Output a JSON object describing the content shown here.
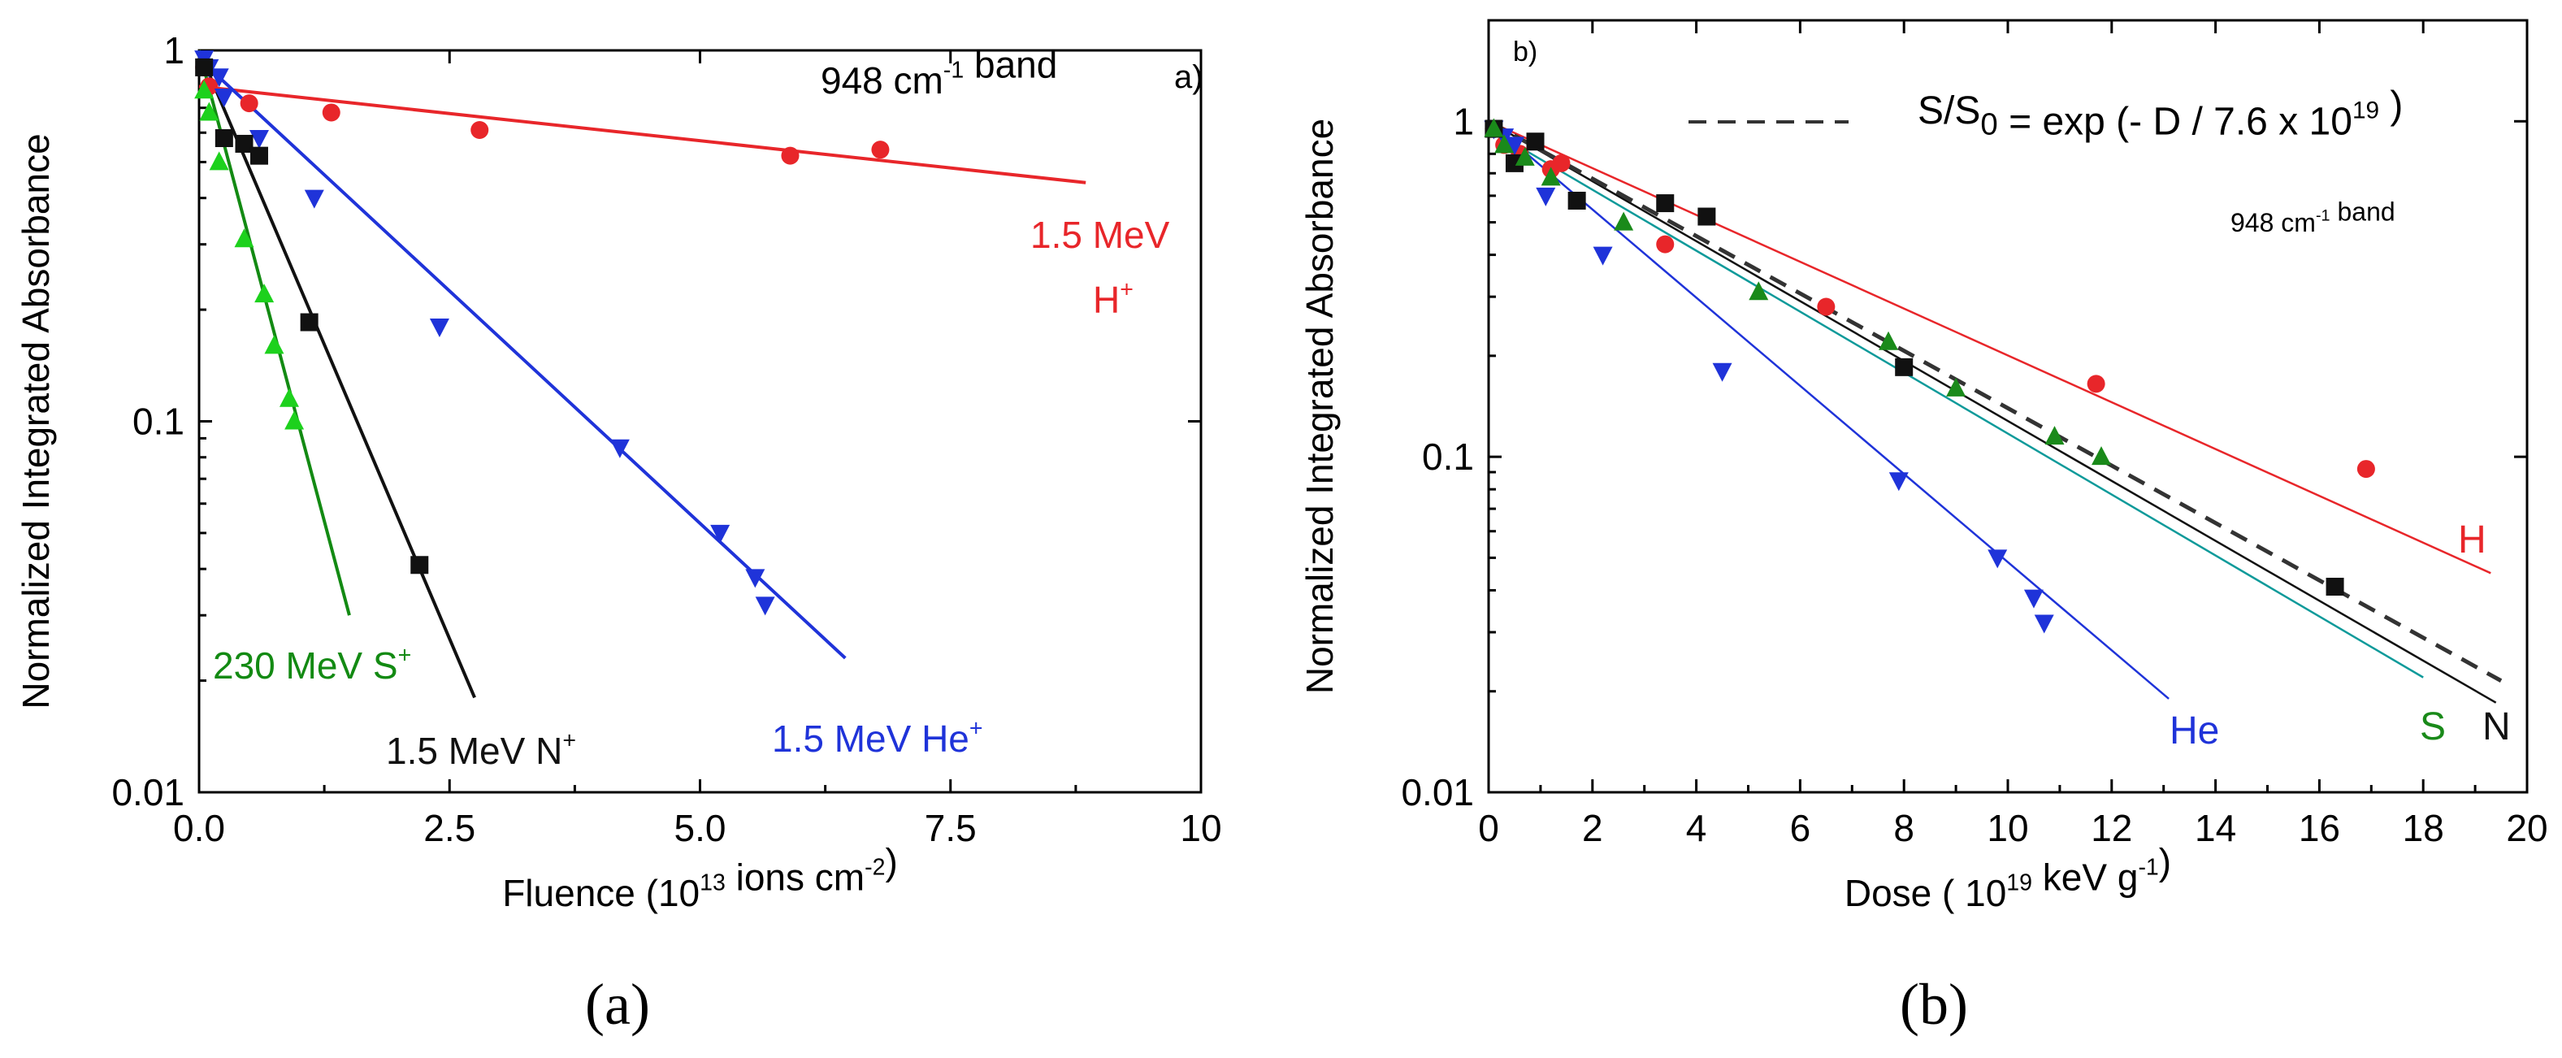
{
  "chart_data": [
    {
      "type": "scatter",
      "panel": "a",
      "panel_tag": "a)",
      "caption": "(a)",
      "band_label": "948 cm",
      "band_sup": "-1",
      "band_suffix": " band",
      "xlabel": "Fluence  (10",
      "xlabel_sup": "13",
      "xlabel_mid": " ions cm",
      "xlabel_sup2": "-2",
      "xlabel_end": ")",
      "ylabel": "Normalized  Integrated  Absorbance",
      "xlim": [
        0,
        10
      ],
      "ylim": [
        0.01,
        1
      ],
      "yscale": "log",
      "xticks": [
        0,
        2.5,
        5,
        7.5,
        10
      ],
      "xtick_labels": [
        "0.0",
        "2.5",
        "5.0",
        "7.5",
        "10"
      ],
      "yticks": [
        0.01,
        0.1,
        1
      ],
      "ytick_labels": [
        "0.01",
        "0.1",
        "1"
      ],
      "series": [
        {
          "name": "H+",
          "label_lines": [
            "1.5 MeV",
            "H"
          ],
          "label_sup": "+",
          "color": "#e8262a",
          "marker": "circle",
          "x": [
            0.05,
            0.1,
            0.5,
            1.32,
            2.8,
            5.9,
            6.8
          ],
          "y": [
            0.9,
            0.8,
            0.72,
            0.68,
            0.61,
            0.52,
            0.54
          ],
          "fit": {
            "x": [
              0,
              8.85
            ],
            "y": [
              0.8,
              0.44
            ]
          }
        },
        {
          "name": "He+",
          "label": "1.5 MeV He",
          "label_sup": "+",
          "color": "#1f33d9",
          "marker": "triangle-down",
          "x": [
            0.05,
            0.1,
            0.2,
            0.25,
            0.6,
            1.15,
            2.4,
            4.2,
            5.2,
            5.55,
            5.65
          ],
          "y": [
            0.95,
            0.9,
            0.85,
            0.75,
            0.58,
            0.4,
            0.18,
            0.085,
            0.05,
            0.038,
            0.032
          ],
          "fit": {
            "x": [
              0,
              6.45
            ],
            "y": [
              0.95,
              0.023
            ]
          }
        },
        {
          "name": "N+",
          "label": "1.5 MeV N",
          "label_sup": "+",
          "color": "#111111",
          "marker": "square",
          "x": [
            0.05,
            0.25,
            0.45,
            0.6,
            1.1,
            2.2
          ],
          "y": [
            0.9,
            0.58,
            0.56,
            0.52,
            0.185,
            0.041
          ],
          "fit": {
            "x": [
              0,
              2.75
            ],
            "y": [
              1.0,
              0.018
            ]
          }
        },
        {
          "name": "S+",
          "label": "230 MeV S",
          "label_sup": "+",
          "color": "#1dd11d",
          "label_color": "#138a13",
          "marker": "triangle-up",
          "x": [
            0.05,
            0.1,
            0.2,
            0.45,
            0.65,
            0.75,
            0.9,
            0.95
          ],
          "y": [
            0.78,
            0.68,
            0.5,
            0.31,
            0.22,
            0.16,
            0.115,
            0.1
          ],
          "fit": {
            "x": [
              0,
              1.5
            ],
            "y": [
              1.0,
              0.03
            ]
          },
          "fit_color": "#138a13"
        }
      ]
    },
    {
      "type": "scatter",
      "panel": "b",
      "panel_tag": "b)",
      "caption": "(b)",
      "band_label": "948 cm",
      "band_sup": "-1",
      "band_suffix": " band",
      "equation": {
        "prefix": "S/S",
        "sub": "0",
        "mid": " = exp (- D / 7.6 x 10",
        "sup": "19",
        "end": " )"
      },
      "xlabel": "Dose  ( 10",
      "xlabel_sup": "19",
      "xlabel_mid": " keV g",
      "xlabel_sup2": "-1",
      "xlabel_end": ")",
      "ylabel": "Normalized  Integrated  Absorbance",
      "xlim": [
        0,
        20
      ],
      "ylim": [
        0.01,
        2
      ],
      "yscale": "log",
      "xticks": [
        0,
        2,
        4,
        6,
        8,
        10,
        12,
        14,
        16,
        18,
        20
      ],
      "xtick_labels": [
        "0",
        "2",
        "4",
        "6",
        "8",
        "10",
        "12",
        "14",
        "16",
        "18",
        "20"
      ],
      "yticks": [
        0.01,
        0.1,
        1
      ],
      "ytick_labels": [
        "0.01",
        "0.1",
        "1"
      ],
      "series": [
        {
          "name": "H",
          "label": "H",
          "color": "#e8262a",
          "line_color": "#e8262a",
          "marker": "circle",
          "x": [
            0.1,
            0.3,
            0.6,
            1.2,
            1.4,
            3.4,
            6.5,
            11.7,
            16.9
          ],
          "y": [
            0.95,
            0.85,
            0.8,
            0.72,
            0.75,
            0.43,
            0.28,
            0.165,
            0.092
          ],
          "fit": {
            "x": [
              0,
              19.3
            ],
            "y": [
              1.0,
              0.045
            ]
          }
        },
        {
          "name": "He",
          "label": "He",
          "color": "#1f33d9",
          "line_color": "#1f33d9",
          "marker": "triangle-down",
          "x": [
            0.1,
            0.3,
            0.5,
            1.1,
            2.2,
            4.5,
            7.9,
            9.8,
            10.5,
            10.7
          ],
          "y": [
            0.95,
            0.9,
            0.85,
            0.6,
            0.4,
            0.18,
            0.085,
            0.05,
            0.038,
            0.032
          ],
          "fit": {
            "x": [
              0,
              13.1
            ],
            "y": [
              1.0,
              0.019
            ]
          }
        },
        {
          "name": "N",
          "label": "N",
          "color": "#111111",
          "line_color": "#111111",
          "marker": "square",
          "x": [
            0.1,
            0.5,
            0.9,
            1.7,
            3.4,
            4.2,
            8.0,
            16.3
          ],
          "y": [
            0.95,
            0.75,
            0.87,
            0.58,
            0.57,
            0.52,
            0.185,
            0.041
          ],
          "fit": {
            "x": [
              0,
              19.4
            ],
            "y": [
              1.0,
              0.0185
            ]
          }
        },
        {
          "name": "S",
          "label": "S",
          "color": "#1a8a1a",
          "line_color": "#0e9a9a",
          "marker": "triangle-up",
          "x": [
            0.1,
            0.3,
            0.7,
            1.2,
            2.6,
            5.2,
            7.7,
            9.0,
            10.9,
            11.8
          ],
          "y": [
            0.95,
            0.85,
            0.78,
            0.68,
            0.5,
            0.31,
            0.22,
            0.16,
            0.115,
            0.1
          ],
          "fit": {
            "x": [
              0,
              18
            ],
            "y": [
              0.95,
              0.022
            ]
          }
        },
        {
          "name": "model",
          "style": "dashed",
          "line_color": "#333333",
          "fit": {
            "x": [
              0,
              19.5
            ],
            "y": [
              1.0,
              0.0215
            ]
          }
        }
      ]
    }
  ]
}
